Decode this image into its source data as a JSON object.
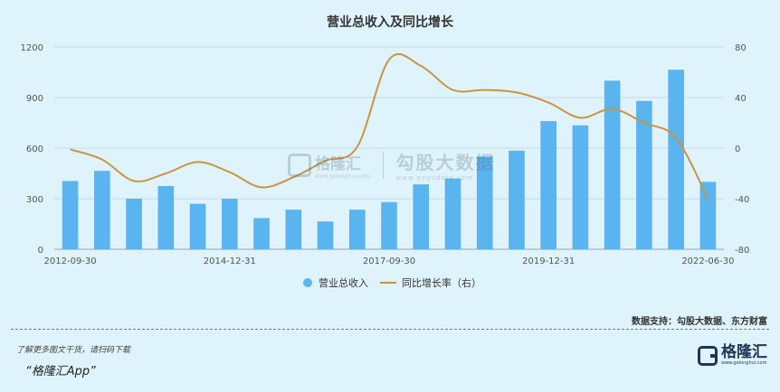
{
  "chart_data": {
    "type": "bar",
    "title": "营业总收入及同比增长",
    "x_tick_labels": [
      "2012-09-30",
      "2014-12-31",
      "2017-09-30",
      "2019-12-31",
      "2022-06-30"
    ],
    "x_tick_indices": [
      0,
      5,
      10,
      15,
      20
    ],
    "left_axis": {
      "ylim": [
        0,
        1200
      ],
      "ticks": [
        0,
        300,
        600,
        900,
        1200
      ]
    },
    "right_axis": {
      "ylim": [
        -80,
        80
      ],
      "ticks": [
        -80,
        -40,
        0,
        40,
        80
      ]
    },
    "series": [
      {
        "name": "营业总收入",
        "type": "bar",
        "axis": "left",
        "color": "#5ab4f0",
        "values": [
          405,
          465,
          300,
          375,
          270,
          300,
          185,
          235,
          165,
          235,
          280,
          385,
          420,
          550,
          585,
          760,
          735,
          1000,
          880,
          1065,
          400
        ]
      },
      {
        "name": "同比增长率（右）",
        "type": "line",
        "axis": "right",
        "color": "#c8963e",
        "values": [
          -1,
          -9,
          -26,
          -20,
          -11,
          -19,
          -31,
          -23,
          -10,
          1,
          70,
          65,
          46,
          46,
          44,
          36,
          24,
          31,
          20,
          8,
          -40
        ]
      }
    ],
    "legend_position": "bottom-center",
    "grid": true
  },
  "watermark": {
    "brand": "格隆汇",
    "brand_url": "www.gelonghui.com",
    "name": "勾股大数据",
    "url": "www.gogudata.com"
  },
  "source_text": "数据支持：勾股大数据、东方财富",
  "promo_text": "了解更多图文干货，请扫码下载",
  "app_text": "“格隆汇App”",
  "logo": {
    "text": "格隆汇",
    "url": "www.gelonghui.com"
  }
}
